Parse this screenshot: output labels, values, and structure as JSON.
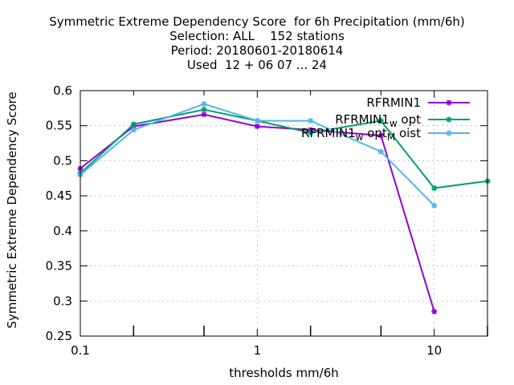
{
  "chart_data": {
    "type": "line",
    "title_lines": [
      "Symmetric Extreme Dependency Score  for 6h Precipitation (mm/6h)",
      "Selection: ALL    152 stations",
      "Period: 20180601-20180614",
      "Used  12 + 06 07 ... 24"
    ],
    "xlabel": "thresholds mm/6h",
    "ylabel": "Symmetric Extreme Dependency Score",
    "x_scale": "log",
    "xlim": [
      0.1,
      20
    ],
    "ylim": [
      0.25,
      0.6
    ],
    "x_ticks_major": [
      0.1,
      1,
      10
    ],
    "x_tick_labels": [
      "0.1",
      "1",
      "10"
    ],
    "x_ticks_minor": [
      0.2,
      0.5,
      2,
      5,
      20
    ],
    "y_ticks": [
      0.25,
      0.3,
      0.35,
      0.4,
      0.45,
      0.5,
      0.55,
      0.6
    ],
    "y_tick_labels": [
      "0.25",
      "0.3",
      "0.35",
      "0.4",
      "0.45",
      "0.5",
      "0.55",
      "0.6"
    ],
    "grid": "x major only, dashed",
    "legend_position": "top-right",
    "series": [
      {
        "name": "RFRMIN1",
        "color": "#9400d3",
        "x": [
          0.1,
          0.2,
          0.5,
          1,
          2,
          5,
          10
        ],
        "y": [
          0.489,
          0.549,
          0.566,
          0.549,
          0.544,
          0.536,
          0.285
        ]
      },
      {
        "name_parts": [
          "RFRMIN1",
          "w",
          " opt"
        ],
        "color": "#009e73",
        "x": [
          0.1,
          0.2,
          0.5,
          1,
          2,
          5,
          10,
          20
        ],
        "y": [
          0.482,
          0.552,
          0.573,
          0.557,
          0.54,
          0.557,
          0.461,
          0.471
        ]
      },
      {
        "name_parts": [
          "RFRMIN1",
          "w",
          " opt",
          "M",
          " oist"
        ],
        "color": "#56b4e9",
        "x": [
          0.1,
          0.2,
          0.5,
          1,
          2,
          5,
          10
        ],
        "y": [
          0.48,
          0.544,
          0.581,
          0.557,
          0.557,
          0.513,
          0.436
        ]
      }
    ]
  }
}
